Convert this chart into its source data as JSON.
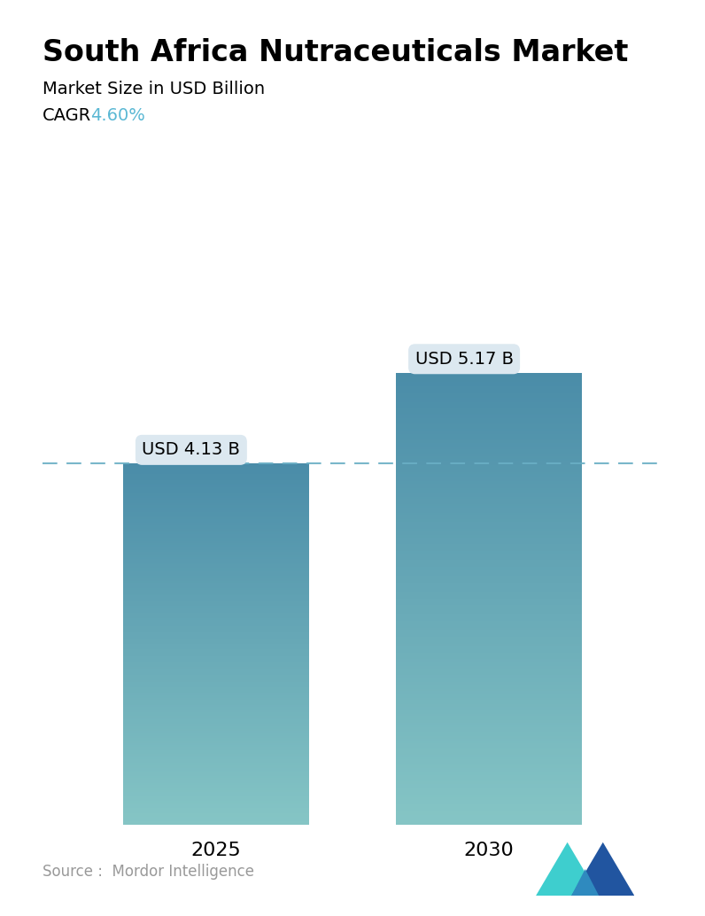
{
  "title": "South Africa Nutraceuticals Market",
  "subtitle": "Market Size in USD Billion",
  "cagr_label": "CAGR",
  "cagr_value": "4.60%",
  "cagr_color": "#5ab8d4",
  "years": [
    "2025",
    "2030"
  ],
  "values": [
    4.13,
    5.17
  ],
  "labels": [
    "USD 4.13 B",
    "USD 5.17 B"
  ],
  "bar_top_color": "#4a8ca8",
  "bar_bottom_color": "#85c5c5",
  "dashed_line_color": "#6aafc5",
  "source_text": "Source :  Mordor Intelligence",
  "source_color": "#999999",
  "background_color": "#ffffff",
  "title_fontsize": 24,
  "subtitle_fontsize": 14,
  "cagr_fontsize": 14,
  "label_fontsize": 14,
  "tick_fontsize": 16,
  "source_fontsize": 12,
  "bar_positions": [
    0.28,
    0.72
  ],
  "bar_width": 0.3,
  "ylim": [
    0,
    6.5
  ],
  "label_box_color": "#dce8f0",
  "logo_tri1_color": "#3ecece",
  "logo_tri2_color": "#2155a0",
  "logo_tri3_color": "#2f8abf"
}
